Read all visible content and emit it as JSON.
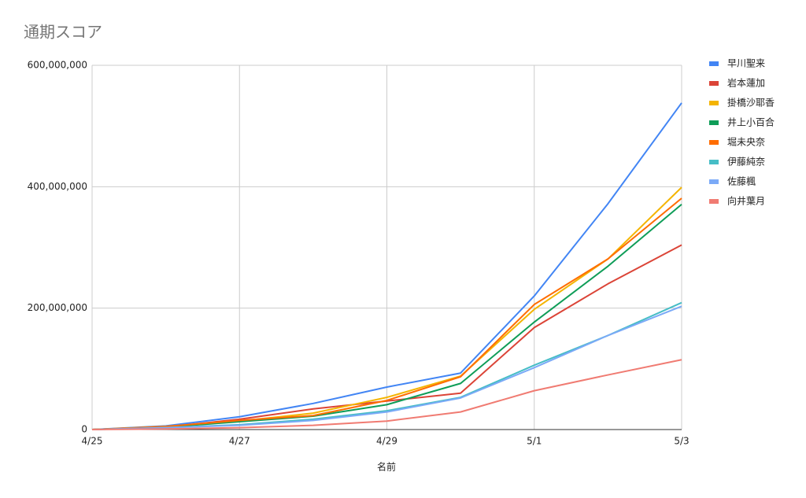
{
  "chart_data": {
    "type": "line",
    "title": "通期スコア",
    "x_label": "名前",
    "categories": [
      "4/25",
      null,
      "4/27",
      null,
      "4/29",
      null,
      "5/1",
      null,
      "5/3"
    ],
    "series": [
      {
        "name": "早川聖来",
        "color": "#4285f4",
        "values": [
          0,
          6000000,
          21000000,
          43000000,
          70000000,
          93000000,
          220000000,
          372000000,
          538000000
        ]
      },
      {
        "name": "岩本蓮加",
        "color": "#db4437",
        "values": [
          0,
          4000000,
          17000000,
          34000000,
          47000000,
          60000000,
          168000000,
          240000000,
          304000000
        ]
      },
      {
        "name": "掛橋沙耶香",
        "color": "#f4b400",
        "values": [
          0,
          5000000,
          14000000,
          27000000,
          53000000,
          88000000,
          198000000,
          281000000,
          399000000
        ]
      },
      {
        "name": "井上小百合",
        "color": "#0f9d58",
        "values": [
          0,
          4000000,
          13000000,
          22000000,
          41000000,
          76000000,
          177000000,
          269000000,
          371000000
        ]
      },
      {
        "name": "堀未央奈",
        "color": "#ff6d01",
        "values": [
          0,
          5000000,
          15000000,
          23000000,
          48000000,
          87000000,
          206000000,
          281000000,
          381000000
        ]
      },
      {
        "name": "伊藤純奈",
        "color": "#46bdc6",
        "values": [
          0,
          3000000,
          8000000,
          17000000,
          31000000,
          53000000,
          106000000,
          155000000,
          209000000
        ]
      },
      {
        "name": "佐藤楓",
        "color": "#7baaf7",
        "values": [
          0,
          3000000,
          7000000,
          15000000,
          29000000,
          52000000,
          102000000,
          155000000,
          203000000
        ]
      },
      {
        "name": "向井葉月",
        "color": "#f07b72",
        "values": [
          0,
          1000000,
          3000000,
          7000000,
          14000000,
          29000000,
          64000000,
          90000000,
          115000000
        ]
      }
    ],
    "ylim": [
      0,
      600000000
    ],
    "yticks": [
      0,
      {
        "value": 200000000,
        "label": "200,000,000"
      },
      {
        "value": 400000000,
        "label": "400,000,000"
      },
      {
        "value": 600000000,
        "label": "600,000,000"
      }
    ],
    "grid": true,
    "legend": "right"
  }
}
